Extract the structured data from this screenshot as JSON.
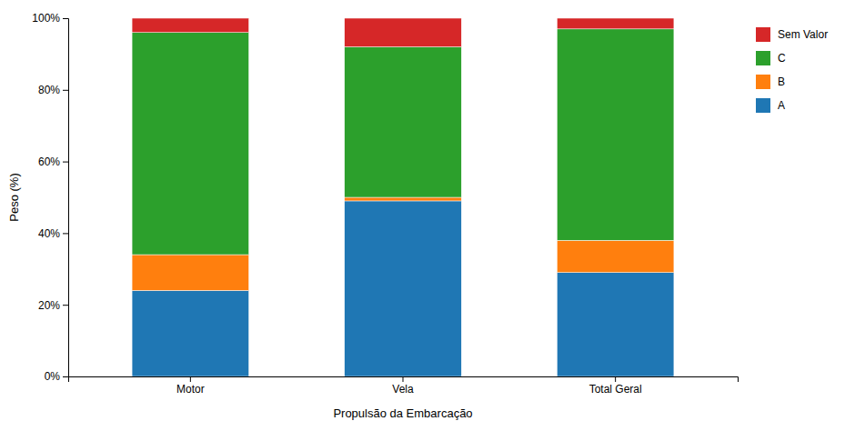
{
  "chart_data": {
    "type": "bar",
    "stacked": true,
    "xlabel": "Propulsão da Embarcação",
    "ylabel": "Peso (%)",
    "categories": [
      "Motor",
      "Vela",
      "Total Geral"
    ],
    "series": [
      {
        "name": "A",
        "values": [
          0.24,
          0.49,
          0.29
        ]
      },
      {
        "name": "B",
        "values": [
          0.1,
          0.01,
          0.09
        ]
      },
      {
        "name": "C",
        "values": [
          0.62,
          0.42,
          0.59
        ]
      },
      {
        "name": "Sem Valor",
        "values": [
          0.04,
          0.08,
          0.03
        ]
      }
    ],
    "ylim": [
      0,
      1.0
    ],
    "yticks": [
      {
        "value": 0,
        "label": "0%"
      },
      {
        "value": 0.2,
        "label": "20%"
      },
      {
        "value": 0.4,
        "label": "40%"
      },
      {
        "value": 0.6,
        "label": "60%"
      },
      {
        "value": 0.8,
        "label": "80%"
      },
      {
        "value": 1.0,
        "label": "100%"
      }
    ],
    "grid": false,
    "legend": "right"
  }
}
